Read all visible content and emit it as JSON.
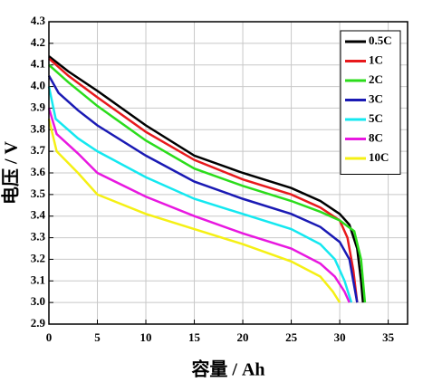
{
  "chart_data": {
    "type": "line",
    "xlabel": "容量 / Ah",
    "ylabel": "电压 / V",
    "xlim": [
      0,
      37
    ],
    "xticks": [
      0,
      5,
      10,
      15,
      20,
      25,
      30,
      35
    ],
    "ylim": [
      2.9,
      4.3
    ],
    "yticks": [
      2.9,
      {
        "value": 3,
        "label": "3.0"
      },
      3.1,
      3.2,
      3.3,
      3.4,
      3.5,
      3.6,
      3.7,
      3.8,
      3.9,
      {
        "value": 4,
        "label": "4.0"
      },
      4.1,
      4.2,
      4.3
    ],
    "grid": true,
    "legend": "upper right",
    "series": [
      {
        "name": "0.5C",
        "color": "#000000",
        "x": [
          0,
          2,
          5,
          10,
          15,
          20,
          25,
          28,
          30,
          31,
          31.8,
          32.2,
          32.4
        ],
        "values": [
          4.14,
          4.07,
          3.98,
          3.82,
          3.68,
          3.6,
          3.53,
          3.47,
          3.41,
          3.36,
          3.25,
          3.1,
          3.0
        ]
      },
      {
        "name": "1C",
        "color": "#e8191c",
        "x": [
          0,
          2,
          5,
          10,
          15,
          20,
          25,
          28,
          30,
          30.8,
          31.4,
          31.8
        ],
        "values": [
          4.13,
          4.05,
          3.95,
          3.79,
          3.66,
          3.57,
          3.5,
          3.44,
          3.38,
          3.3,
          3.15,
          3.0
        ]
      },
      {
        "name": "2C",
        "color": "#2bdc1b",
        "x": [
          0,
          2,
          5,
          10,
          15,
          20,
          25,
          28,
          30,
          31.5,
          32.2,
          32.6
        ],
        "values": [
          4.1,
          4.02,
          3.91,
          3.75,
          3.62,
          3.54,
          3.47,
          3.42,
          3.38,
          3.33,
          3.2,
          3.0
        ]
      },
      {
        "name": "3C",
        "color": "#1a1ab4",
        "x": [
          0,
          1,
          3,
          5,
          10,
          15,
          20,
          25,
          28,
          30,
          31,
          31.6,
          31.8
        ],
        "values": [
          4.05,
          3.97,
          3.89,
          3.82,
          3.68,
          3.56,
          3.48,
          3.41,
          3.35,
          3.28,
          3.2,
          3.05,
          3.0
        ]
      },
      {
        "name": "5C",
        "color": "#14e8f0",
        "x": [
          0,
          0.7,
          3,
          5,
          10,
          15,
          20,
          25,
          28,
          29.5,
          30.5,
          31.2
        ],
        "values": [
          4.0,
          3.85,
          3.76,
          3.7,
          3.58,
          3.48,
          3.41,
          3.34,
          3.27,
          3.2,
          3.1,
          3.0
        ]
      },
      {
        "name": "8C",
        "color": "#e818e0",
        "x": [
          0,
          0.8,
          3,
          5,
          10,
          15,
          20,
          25,
          28,
          29.5,
          30.5,
          31
        ],
        "values": [
          3.9,
          3.78,
          3.69,
          3.6,
          3.49,
          3.4,
          3.32,
          3.25,
          3.18,
          3.12,
          3.05,
          3.0
        ]
      },
      {
        "name": "10C",
        "color": "#f5f014",
        "x": [
          0,
          0.8,
          3,
          5,
          10,
          15,
          20,
          25,
          28,
          29.3,
          30
        ],
        "values": [
          3.85,
          3.7,
          3.6,
          3.5,
          3.41,
          3.34,
          3.27,
          3.19,
          3.12,
          3.05,
          3.0
        ]
      }
    ]
  }
}
